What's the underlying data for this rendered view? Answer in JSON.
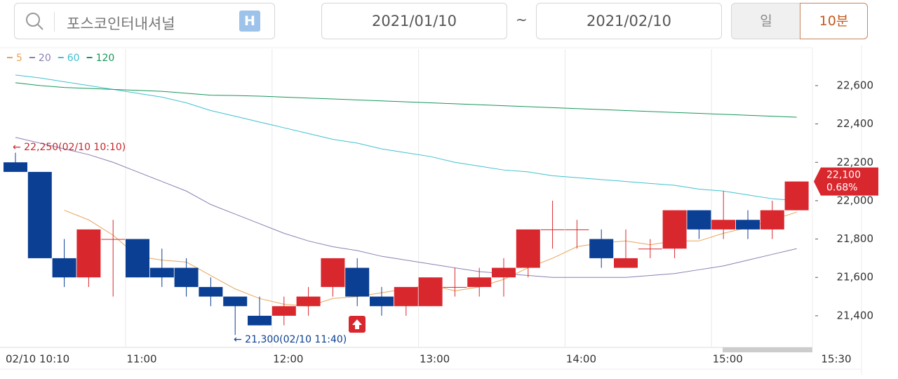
{
  "header": {
    "search_text": "포스코인터내셔널",
    "badge": "H",
    "start_date": "2021/01/10",
    "separator": "~",
    "end_date": "2021/02/10",
    "tabs": [
      "일",
      "10분"
    ]
  },
  "chart_data": {
    "type": "candlestick",
    "categories": [
      "02/10 10:10",
      null,
      null,
      null,
      null,
      "11:00",
      null,
      null,
      null,
      null,
      null,
      "12:00",
      null,
      null,
      null,
      null,
      null,
      "13:00",
      null,
      null,
      null,
      null,
      null,
      "14:00",
      null,
      null,
      null,
      null,
      null,
      "15:00",
      null,
      null,
      "15:30"
    ],
    "open": [
      22200,
      22150,
      21700,
      21600,
      21800,
      21800,
      21650,
      21650,
      21550,
      21500,
      21400,
      21400,
      21450,
      21550,
      21650,
      21500,
      21450,
      21450,
      21550,
      21550,
      21600,
      21650,
      21850,
      21850,
      21800,
      21650,
      21750,
      21750,
      21950,
      21850,
      21900,
      21850,
      21950
    ],
    "high": [
      22250,
      22150,
      21800,
      21850,
      21900,
      21800,
      21750,
      21700,
      21600,
      21500,
      21500,
      21500,
      21550,
      21700,
      21700,
      21550,
      21550,
      21600,
      21650,
      21650,
      21700,
      21850,
      22000,
      21900,
      21850,
      21850,
      21800,
      21950,
      21950,
      22050,
      21950,
      22000,
      22100
    ],
    "low": [
      22150,
      21700,
      21550,
      21550,
      21500,
      21600,
      21550,
      21500,
      21450,
      21300,
      21350,
      21350,
      21400,
      21500,
      21450,
      21400,
      21400,
      21450,
      21500,
      21500,
      21500,
      21600,
      21750,
      21750,
      21650,
      21650,
      21700,
      21700,
      21800,
      21800,
      21800,
      21800,
      21950
    ],
    "close": [
      22150,
      21700,
      21600,
      21850,
      21800,
      21600,
      21600,
      21550,
      21500,
      21450,
      21350,
      21450,
      21500,
      21700,
      21500,
      21450,
      21550,
      21600,
      21550,
      21600,
      21650,
      21850,
      21850,
      21850,
      21700,
      21700,
      21750,
      21950,
      21850,
      21900,
      21850,
      21950,
      22100
    ],
    "up_color": "#d9272e",
    "down_color": "#0b3f93",
    "series": [
      {
        "name": "5",
        "color": "#e8a35a",
        "values": [
          null,
          null,
          21950,
          21900,
          21820,
          21710,
          21690,
          21680,
          21610,
          21540,
          21490,
          21460,
          21450,
          21490,
          21500,
          21520,
          21540,
          21560,
          21530,
          21550,
          21590,
          21650,
          21700,
          21760,
          21780,
          21790,
          21770,
          21790,
          21790,
          21830,
          21860,
          21900,
          21940
        ]
      },
      {
        "name": "20",
        "color": "#8c7fb3",
        "values": [
          22330,
          22300,
          22270,
          22240,
          22200,
          22150,
          22100,
          22050,
          21980,
          21930,
          21880,
          21830,
          21790,
          21760,
          21740,
          21710,
          21690,
          21670,
          21650,
          21630,
          21620,
          21610,
          21600,
          21600,
          21600,
          21600,
          21610,
          21620,
          21640,
          21660,
          21690,
          21720,
          21750
        ]
      },
      {
        "name": "60",
        "color": "#3fc1cf",
        "values": [
          22655,
          22640,
          22620,
          22600,
          22580,
          22560,
          22540,
          22510,
          22470,
          22440,
          22410,
          22380,
          22350,
          22320,
          22300,
          22270,
          22250,
          22230,
          22200,
          22180,
          22160,
          22150,
          22130,
          22120,
          22110,
          22100,
          22090,
          22080,
          22060,
          22050,
          22030,
          22010,
          22000
        ]
      },
      {
        "name": "120",
        "color": "#16975a",
        "values": [
          22615,
          22600,
          22590,
          22585,
          22580,
          22575,
          22570,
          22560,
          22550,
          22548,
          22545,
          22540,
          22535,
          22530,
          22525,
          22520,
          22515,
          22510,
          22505,
          22500,
          22495,
          22490,
          22485,
          22480,
          22475,
          22470,
          22465,
          22460,
          22455,
          22450,
          22445,
          22440,
          22435
        ]
      }
    ],
    "ylim": [
      21235,
      22790
    ],
    "yticks": [
      {
        "value": 21400,
        "label": "21,400"
      },
      {
        "value": 21600,
        "label": "21,600"
      },
      {
        "value": 21800,
        "label": "21,800"
      },
      {
        "value": 22000,
        "label": "22,000"
      },
      {
        "value": 22200,
        "label": "22,200"
      },
      {
        "value": 22400,
        "label": "22,400"
      },
      {
        "value": 22600,
        "label": "22,600"
      }
    ],
    "grid": true,
    "annotations": {
      "max_label": "← 22,250(02/10 10:10)",
      "min_label": "← 21,300(02/10 11:40)",
      "last_price": "22,100",
      "last_change": "0.68%"
    }
  }
}
